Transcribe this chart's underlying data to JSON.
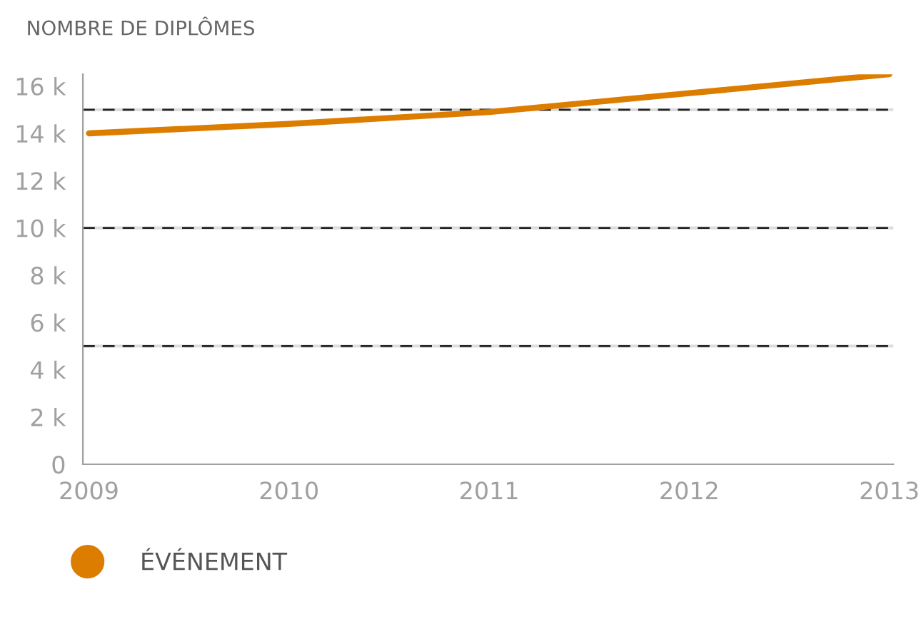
{
  "chart_data": {
    "type": "line",
    "title": "NOMBRE DE DIPLÔMES",
    "x": [
      2009,
      2010,
      2011,
      2012,
      2013
    ],
    "series": [
      {
        "name": "ÉVÉNEMENT",
        "color": "#dc7d00",
        "values": [
          14000,
          14400,
          14900,
          15700,
          16500
        ]
      }
    ],
    "xlim": [
      2008.97,
      2013.02
    ],
    "xticks": [
      2009,
      2010,
      2011,
      2012,
      2013
    ],
    "ylim": [
      0,
      16500
    ],
    "yticks": [
      0,
      {
        "value": 2000,
        "label": "2 k"
      },
      {
        "value": 4000,
        "label": "4 k"
      },
      {
        "value": 6000,
        "label": "6 k"
      },
      {
        "value": 8000,
        "label": "8 k"
      },
      {
        "value": 10000,
        "label": "10 k"
      },
      {
        "value": 12000,
        "label": "12 k"
      },
      {
        "value": 14000,
        "label": "14 k"
      },
      {
        "value": 16000,
        "label": "16 k"
      }
    ],
    "ref_lines": [
      {
        "axis": "y",
        "value": 5000,
        "color": "#222222",
        "line_style": "dashed"
      },
      {
        "axis": "y",
        "value": 10000,
        "color": "#222222",
        "line_style": "dashed"
      },
      {
        "axis": "y",
        "value": 15000,
        "color": "#222222",
        "line_style": "dashed"
      }
    ],
    "grid": false,
    "legend": "bottom left",
    "marker": "none",
    "line_style": "solid"
  }
}
